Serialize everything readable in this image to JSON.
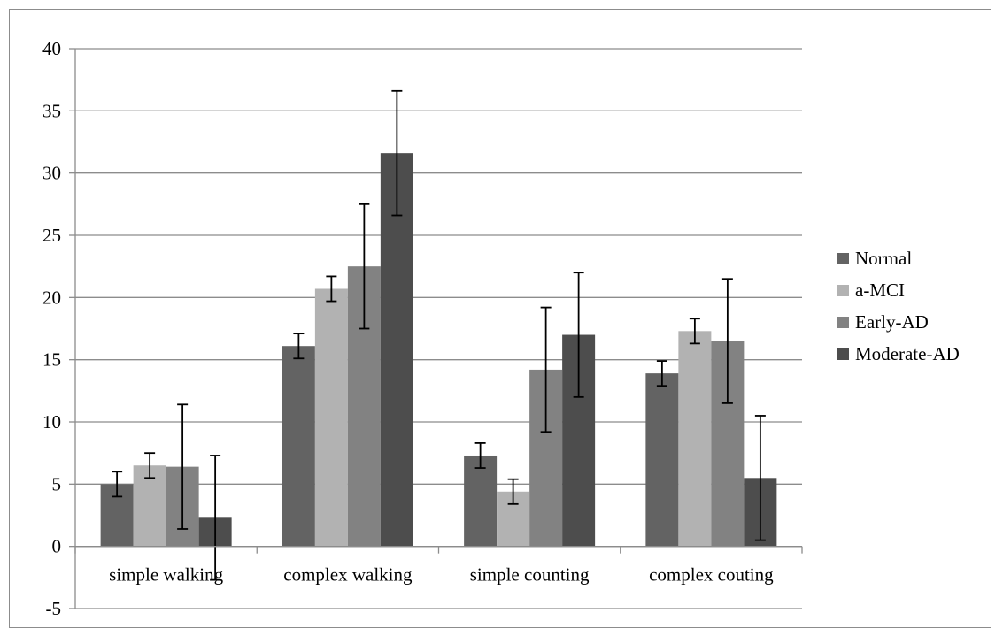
{
  "chart_data": {
    "type": "bar",
    "categories": [
      "simple walking",
      "complex walking",
      "simple counting",
      "complex couting"
    ],
    "series": [
      {
        "name": "Normal",
        "color": "#636363",
        "values": [
          5.0,
          16.1,
          7.3,
          13.9
        ],
        "errors": [
          1.0,
          1.0,
          1.0,
          1.0
        ]
      },
      {
        "name": "a-MCI",
        "color": "#b2b2b2",
        "values": [
          6.5,
          20.7,
          4.4,
          17.3
        ],
        "errors": [
          1.0,
          1.0,
          1.0,
          1.0
        ]
      },
      {
        "name": "Early-AD",
        "color": "#828282",
        "values": [
          6.4,
          22.5,
          14.2,
          16.5
        ],
        "errors": [
          5.0,
          5.0,
          5.0,
          5.0
        ]
      },
      {
        "name": "Moderate-AD",
        "color": "#4d4d4d",
        "values": [
          2.3,
          31.6,
          17.0,
          5.5
        ],
        "errors": [
          5.0,
          5.0,
          5.0,
          5.0
        ]
      }
    ],
    "ylim": [
      -5,
      40
    ],
    "yticks": [
      "40",
      "35",
      "30",
      "25",
      "20",
      "15",
      "10",
      "5",
      "0",
      "-5"
    ],
    "title": "",
    "xlabel": "",
    "ylabel": "",
    "grid": true,
    "legend": "right"
  }
}
